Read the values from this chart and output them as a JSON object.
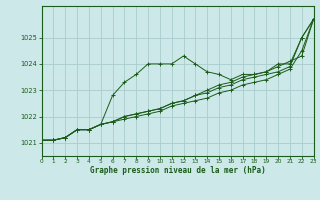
{
  "xlabel": "Graphe pression niveau de la mer (hPa)",
  "bg_color": "#cce8e8",
  "grid_color": "#aacccc",
  "line_color": "#1a5c1a",
  "xlim": [
    0,
    23
  ],
  "ylim": [
    1020.5,
    1026.2
  ],
  "xticks": [
    0,
    1,
    2,
    3,
    4,
    5,
    6,
    7,
    8,
    9,
    10,
    11,
    12,
    13,
    14,
    15,
    16,
    17,
    18,
    19,
    20,
    21,
    22,
    23
  ],
  "yticks": [
    1021,
    1022,
    1023,
    1024,
    1025
  ],
  "series": [
    [
      1021.1,
      1021.1,
      1021.2,
      1021.5,
      1021.5,
      1021.7,
      1022.8,
      1023.3,
      1023.6,
      1024.0,
      1024.0,
      1024.0,
      1024.3,
      1024.0,
      1023.7,
      1023.6,
      1023.4,
      1023.6,
      1023.6,
      1023.7,
      1024.0,
      1024.0,
      1025.0,
      1025.7
    ],
    [
      1021.1,
      1021.1,
      1021.2,
      1021.5,
      1021.5,
      1021.7,
      1021.8,
      1022.0,
      1022.1,
      1022.2,
      1022.3,
      1022.5,
      1022.6,
      1022.8,
      1023.0,
      1023.2,
      1023.3,
      1023.5,
      1023.6,
      1023.7,
      1023.9,
      1024.1,
      1024.3,
      1025.7
    ],
    [
      1021.1,
      1021.1,
      1021.2,
      1021.5,
      1021.5,
      1021.7,
      1021.8,
      1022.0,
      1022.1,
      1022.2,
      1022.3,
      1022.5,
      1022.6,
      1022.8,
      1022.9,
      1023.1,
      1023.2,
      1023.4,
      1023.5,
      1023.6,
      1023.7,
      1023.9,
      1025.0,
      1025.7
    ],
    [
      1021.1,
      1021.1,
      1021.2,
      1021.5,
      1021.5,
      1021.7,
      1021.8,
      1021.9,
      1022.0,
      1022.1,
      1022.2,
      1022.4,
      1022.5,
      1022.6,
      1022.7,
      1022.9,
      1023.0,
      1023.2,
      1023.3,
      1023.4,
      1023.6,
      1023.8,
      1024.5,
      1025.7
    ]
  ]
}
